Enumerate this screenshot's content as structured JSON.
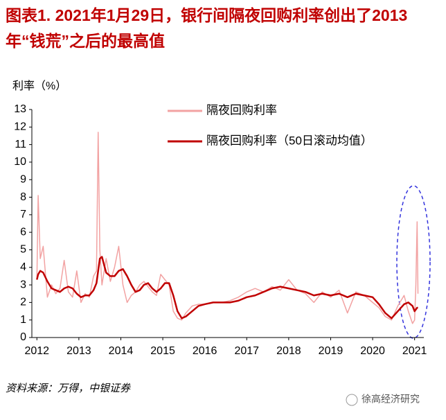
{
  "chart_data": {
    "type": "line",
    "title": "图表1. 2021年1月29日，银行间隔夜回购利率创出了2013年“钱荒”之后的最高值",
    "y_label": "利率（%）",
    "source": "资料来源：万得，中银证券",
    "watermark": "徐高经济研究",
    "x": [
      2012.0,
      2012.03,
      2012.08,
      2012.15,
      2012.25,
      2012.35,
      2012.45,
      2012.55,
      2012.65,
      2012.75,
      2012.85,
      2012.95,
      2013.05,
      2013.15,
      2013.25,
      2013.35,
      2013.42,
      2013.46,
      2013.5,
      2013.55,
      2013.65,
      2013.75,
      2013.85,
      2013.95,
      2014.05,
      2014.15,
      2014.25,
      2014.35,
      2014.45,
      2014.55,
      2014.65,
      2014.75,
      2014.85,
      2014.95,
      2015.05,
      2015.15,
      2015.25,
      2015.35,
      2015.45,
      2015.55,
      2015.7,
      2015.85,
      2016.0,
      2016.2,
      2016.4,
      2016.6,
      2016.8,
      2017.0,
      2017.2,
      2017.4,
      2017.6,
      2017.8,
      2018.0,
      2018.2,
      2018.4,
      2018.6,
      2018.8,
      2019.0,
      2019.2,
      2019.4,
      2019.6,
      2019.8,
      2020.0,
      2020.15,
      2020.3,
      2020.45,
      2020.6,
      2020.75,
      2020.85,
      2020.95,
      2021.0,
      2021.03,
      2021.06,
      2021.08
    ],
    "series": [
      {
        "name": "隔夜回购利率",
        "color": "#f2a2a2",
        "values": [
          3.3,
          8.1,
          4.5,
          5.2,
          2.3,
          3.0,
          2.5,
          2.8,
          4.4,
          2.6,
          2.3,
          3.8,
          2.0,
          2.5,
          2.3,
          3.5,
          3.8,
          11.7,
          5.0,
          3.0,
          4.5,
          3.2,
          4.0,
          5.2,
          3.0,
          2.0,
          2.4,
          2.6,
          3.0,
          3.2,
          2.9,
          2.6,
          2.4,
          3.6,
          3.3,
          3.0,
          1.5,
          1.1,
          1.0,
          1.4,
          1.8,
          1.9,
          1.9,
          2.0,
          2.0,
          2.1,
          2.3,
          2.6,
          2.8,
          2.6,
          2.9,
          2.7,
          3.3,
          2.7,
          2.5,
          2.0,
          2.6,
          2.3,
          2.7,
          1.4,
          2.6,
          2.4,
          2.0,
          1.7,
          1.2,
          1.0,
          1.8,
          2.4,
          1.5,
          0.8,
          1.0,
          3.0,
          6.6,
          2.5
        ]
      },
      {
        "name": "隔夜回购利率（50日滚动均值）",
        "color": "#c00000",
        "values": [
          3.3,
          3.6,
          3.8,
          3.7,
          3.2,
          2.8,
          2.7,
          2.6,
          2.8,
          2.9,
          2.8,
          2.5,
          2.3,
          2.4,
          2.4,
          2.7,
          3.1,
          3.8,
          4.5,
          4.6,
          3.7,
          3.5,
          3.5,
          3.8,
          3.9,
          3.5,
          3.0,
          2.6,
          2.7,
          3.0,
          3.1,
          2.8,
          2.6,
          2.8,
          3.1,
          3.1,
          2.4,
          1.5,
          1.1,
          1.2,
          1.5,
          1.8,
          1.9,
          2.0,
          2.0,
          2.0,
          2.1,
          2.3,
          2.4,
          2.6,
          2.8,
          2.9,
          2.8,
          2.7,
          2.6,
          2.4,
          2.5,
          2.4,
          2.5,
          2.3,
          2.5,
          2.4,
          2.3,
          1.9,
          1.4,
          1.1,
          1.5,
          1.9,
          2.0,
          1.8,
          1.5,
          1.6,
          1.7,
          1.7
        ]
      }
    ],
    "xlim": [
      2011.88,
      2021.22
    ],
    "xticks": [
      2012,
      2013,
      2014,
      2015,
      2016,
      2017,
      2018,
      2019,
      2020,
      2021
    ],
    "ylim": [
      0,
      13
    ],
    "yticks": [
      0,
      1,
      2,
      3,
      4,
      5,
      6,
      7,
      8,
      9,
      10,
      11,
      12,
      13
    ],
    "grid": false
  }
}
